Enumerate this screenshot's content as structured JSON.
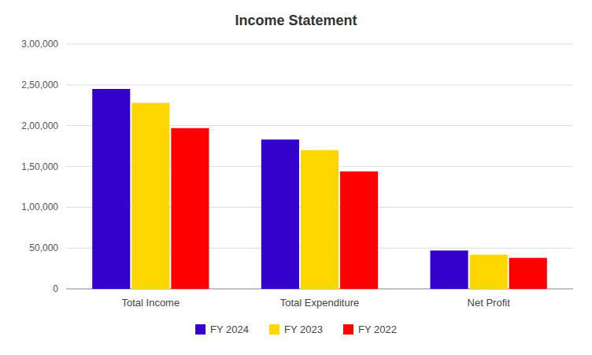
{
  "chart_data": {
    "type": "bar",
    "title": "Income Statement",
    "categories": [
      "Total Income",
      "Total Expenditure",
      "Net Profit"
    ],
    "series": [
      {
        "name": "FY 2024",
        "color": "#3300CC",
        "values": [
          245000,
          183000,
          47000
        ]
      },
      {
        "name": "FY 2023",
        "color": "#FFD700",
        "values": [
          228000,
          170000,
          42000
        ]
      },
      {
        "name": "FY 2022",
        "color": "#FF0000",
        "values": [
          197000,
          144000,
          38000
        ]
      }
    ],
    "ylim": [
      0,
      300000
    ],
    "yticks": [
      0,
      {
        "value": 50000,
        "label": "50,000"
      },
      {
        "value": 100000,
        "label": "1,00,000"
      },
      {
        "value": 150000,
        "label": "1,50,000"
      },
      {
        "value": 200000,
        "label": "2,00,000"
      },
      {
        "value": 250000,
        "label": "2,50,000"
      },
      {
        "value": 300000,
        "label": "3,00,000"
      }
    ],
    "grid": true,
    "legend": "bottom"
  }
}
